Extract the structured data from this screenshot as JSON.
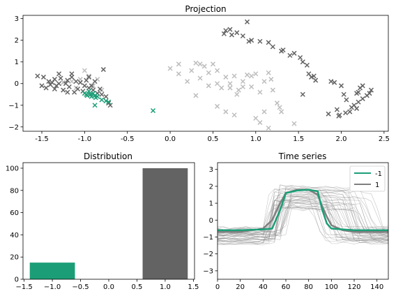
{
  "colors": {
    "highlight": "#1b9e77",
    "dark": "#636363",
    "light": "#bdbdbd",
    "series_bg": "#7f7f7f"
  },
  "chart_data": [
    {
      "type": "scatter",
      "title": "Projection",
      "marker": "x",
      "xlim": [
        -1.72,
        2.55
      ],
      "ylim": [
        -2.2,
        3.15
      ],
      "xticks": [
        -1.5,
        -1.0,
        -0.5,
        0.0,
        0.5,
        1.0,
        1.5,
        2.0,
        2.5
      ],
      "xtick_labels": [
        "-1.5",
        "-1.0",
        "-0.5",
        "0.0",
        "0.5",
        "1.0",
        "1.5",
        "2.0",
        "2.5"
      ],
      "yticks": [
        -2,
        -1,
        0,
        1,
        2,
        3
      ],
      "ytick_labels": [
        "−2",
        "−1",
        "0",
        "1",
        "2",
        "3"
      ],
      "series": [
        {
          "color_key": "light",
          "points": [
            [
              -1.25,
              0.05
            ],
            [
              -1.15,
              0.1
            ],
            [
              -1.05,
              0.2
            ],
            [
              -1.0,
              0.6
            ],
            [
              -0.95,
              0.35
            ],
            [
              -0.9,
              -0.1
            ],
            [
              -0.85,
              0.2
            ],
            [
              -0.8,
              -0.3
            ],
            [
              -0.95,
              -0.5
            ],
            [
              -1.1,
              -0.2
            ],
            [
              0.0,
              0.7
            ],
            [
              0.1,
              0.9
            ],
            [
              0.1,
              0.45
            ],
            [
              0.25,
              0.6
            ],
            [
              0.3,
              0.95
            ],
            [
              0.35,
              0.25
            ],
            [
              0.4,
              0.8
            ],
            [
              0.45,
              -0.1
            ],
            [
              0.5,
              0.9
            ],
            [
              0.45,
              0.5
            ],
            [
              0.55,
              0.6
            ],
            [
              0.55,
              0.0
            ],
            [
              0.6,
              -0.2
            ],
            [
              0.65,
              0.3
            ],
            [
              0.7,
              -0.2
            ],
            [
              0.75,
              0.35
            ],
            [
              0.78,
              -0.5
            ],
            [
              0.8,
              -0.3
            ],
            [
              0.85,
              0.1
            ],
            [
              0.9,
              0.4
            ],
            [
              0.95,
              -0.15
            ],
            [
              1.0,
              0.45
            ],
            [
              1.05,
              -0.4
            ],
            [
              1.1,
              0.1
            ],
            [
              1.15,
              0.5
            ],
            [
              1.2,
              -0.3
            ],
            [
              1.25,
              -0.9
            ],
            [
              1.1,
              -1.3
            ],
            [
              1.0,
              -1.6
            ],
            [
              1.05,
              -1.8
            ],
            [
              1.15,
              -2.05
            ],
            [
              1.3,
              -1.3
            ],
            [
              1.45,
              -1.85
            ],
            [
              0.55,
              -1.05
            ],
            [
              0.65,
              -1.3
            ],
            [
              0.75,
              -1.45
            ],
            [
              0.3,
              -0.55
            ],
            [
              0.2,
              0.1
            ],
            [
              0.85,
              -0.15
            ],
            [
              0.95,
              0.35
            ],
            [
              0.7,
              0.0
            ],
            [
              0.35,
              0.9
            ],
            [
              1.18,
              0.2
            ],
            [
              1.28,
              -1.1
            ]
          ]
        },
        {
          "color_key": "dark",
          "points": [
            [
              -1.55,
              0.35
            ],
            [
              -1.5,
              -0.1
            ],
            [
              -1.48,
              0.3
            ],
            [
              -1.45,
              -0.2
            ],
            [
              -1.4,
              -0.05
            ],
            [
              -1.38,
              0.05
            ],
            [
              -1.35,
              0.2
            ],
            [
              -1.33,
              -0.1
            ],
            [
              -1.3,
              0.45
            ],
            [
              -1.28,
              0.25
            ],
            [
              -1.25,
              -0.3
            ],
            [
              -1.22,
              0.0
            ],
            [
              -1.2,
              0.15
            ],
            [
              -1.18,
              -0.15
            ],
            [
              -1.15,
              0.3
            ],
            [
              -1.12,
              -0.4
            ],
            [
              -1.1,
              0.1
            ],
            [
              -1.08,
              -0.25
            ],
            [
              -1.05,
              0.05
            ],
            [
              -1.02,
              -0.35
            ],
            [
              -1.0,
              -0.1
            ],
            [
              -0.98,
              0.15
            ],
            [
              -0.95,
              -0.2
            ],
            [
              -0.92,
              -0.1
            ],
            [
              -0.9,
              -0.3
            ],
            [
              -0.88,
              0.1
            ],
            [
              -0.85,
              -0.45
            ],
            [
              -0.82,
              -0.25
            ],
            [
              -0.8,
              -0.5
            ],
            [
              -0.78,
              0.65
            ],
            [
              -0.75,
              -0.6
            ],
            [
              -0.72,
              -0.9
            ],
            [
              -0.7,
              -1.0
            ],
            [
              -0.95,
              0.3
            ],
            [
              -1.3,
              0.0
            ],
            [
              -1.42,
              0.1
            ],
            [
              -1.2,
              -0.4
            ],
            [
              -1.15,
              0.45
            ],
            [
              -1.35,
              -0.25
            ],
            [
              0.63,
              2.3
            ],
            [
              0.65,
              2.45
            ],
            [
              0.7,
              2.5
            ],
            [
              0.72,
              2.25
            ],
            [
              0.78,
              2.35
            ],
            [
              0.85,
              2.2
            ],
            [
              0.9,
              2.85
            ],
            [
              0.92,
              1.95
            ],
            [
              0.95,
              2.0
            ],
            [
              1.05,
              1.95
            ],
            [
              1.15,
              1.9
            ],
            [
              1.2,
              1.7
            ],
            [
              1.3,
              1.5
            ],
            [
              1.32,
              1.55
            ],
            [
              1.4,
              1.3
            ],
            [
              1.45,
              1.4
            ],
            [
              1.52,
              1.2
            ],
            [
              1.55,
              1.0
            ],
            [
              1.6,
              0.85
            ],
            [
              1.62,
              0.45
            ],
            [
              1.65,
              0.3
            ],
            [
              1.68,
              0.35
            ],
            [
              1.7,
              0.15
            ],
            [
              1.55,
              -0.5
            ],
            [
              1.85,
              -1.4
            ],
            [
              1.88,
              0.1
            ],
            [
              1.92,
              0.05
            ],
            [
              1.95,
              -1.2
            ],
            [
              1.97,
              -1.5
            ],
            [
              2.0,
              -0.1
            ],
            [
              2.03,
              -0.5
            ],
            [
              2.05,
              -1.35
            ],
            [
              2.1,
              -1.3
            ],
            [
              2.12,
              -1.1
            ],
            [
              2.15,
              -1.0
            ],
            [
              2.18,
              -0.45
            ],
            [
              2.2,
              -0.85
            ],
            [
              2.22,
              -0.2
            ],
            [
              2.25,
              -0.7
            ],
            [
              2.3,
              -0.55
            ],
            [
              2.33,
              -0.45
            ],
            [
              2.35,
              -0.3
            ],
            [
              2.2,
              -0.4
            ],
            [
              2.18,
              -1.15
            ],
            [
              2.06,
              -0.75
            ],
            [
              2.25,
              -0.1
            ],
            [
              1.98,
              -1.45
            ]
          ]
        },
        {
          "color_key": "highlight",
          "points": [
            [
              -1.0,
              -0.45
            ],
            [
              -0.97,
              -0.55
            ],
            [
              -0.95,
              -0.35
            ],
            [
              -0.93,
              -0.5
            ],
            [
              -0.92,
              -0.6
            ],
            [
              -0.9,
              -0.45
            ],
            [
              -0.88,
              -0.55
            ],
            [
              -0.87,
              -0.65
            ],
            [
              -0.85,
              -0.6
            ],
            [
              -0.8,
              -0.75
            ],
            [
              -0.75,
              -0.8
            ],
            [
              -0.72,
              -0.85
            ],
            [
              -0.88,
              -1.0
            ],
            [
              -0.2,
              -1.25
            ],
            [
              -0.98,
              -0.5
            ]
          ]
        }
      ]
    },
    {
      "type": "bar",
      "title": "Distribution",
      "categories": [
        -1,
        1
      ],
      "values": [
        15,
        100
      ],
      "bar_colors": [
        "highlight",
        "dark"
      ],
      "bar_width": 0.8,
      "xlim": [
        -1.52,
        1.52
      ],
      "ylim": [
        0,
        105
      ],
      "xticks": [
        -1.5,
        -1.0,
        -0.5,
        0.0,
        0.5,
        1.0,
        1.5
      ],
      "xtick_labels": [
        "−1.5",
        "−1.0",
        "−0.5",
        "0.0",
        "0.5",
        "1.0",
        "1.5"
      ],
      "yticks": [
        0,
        20,
        40,
        60,
        80,
        100
      ],
      "ytick_labels": [
        "0",
        "20",
        "40",
        "60",
        "80",
        "100"
      ]
    },
    {
      "type": "line",
      "title": "Time series",
      "xlim": [
        0,
        150
      ],
      "ylim": [
        -3.5,
        3.4
      ],
      "xticks": [
        0,
        20,
        40,
        60,
        80,
        100,
        120,
        140
      ],
      "xtick_labels": [
        "0",
        "20",
        "40",
        "60",
        "80",
        "100",
        "120",
        "140"
      ],
      "yticks": [
        -3,
        -2,
        -1,
        0,
        1,
        2,
        3
      ],
      "ytick_labels": [
        "−3",
        "−2",
        "−1",
        "0",
        "1",
        "2",
        "3"
      ],
      "legend": {
        "placement": "upper-right",
        "entries": [
          {
            "label": "-1",
            "color_key": "highlight"
          },
          {
            "label": "1",
            "color_key": "series_bg"
          }
        ]
      },
      "series": [
        {
          "name": "-1",
          "color_key": "highlight",
          "x": [
            0,
            20,
            40,
            48,
            55,
            60,
            70,
            80,
            88,
            92,
            96,
            100,
            110,
            120,
            130,
            140,
            150
          ],
          "y": [
            -0.6,
            -0.6,
            -0.55,
            -0.5,
            0.6,
            1.6,
            1.75,
            1.8,
            1.7,
            0.6,
            -0.2,
            -0.5,
            -0.55,
            -0.6,
            -0.6,
            -0.6,
            -0.6
          ]
        },
        {
          "name": "1",
          "color_key": "series_bg",
          "x": [
            0,
            20,
            30,
            40,
            48,
            55,
            60,
            70,
            80,
            88,
            92,
            96,
            100,
            110,
            120,
            130,
            140,
            150
          ],
          "y": [
            -0.7,
            -0.7,
            -0.6,
            -0.5,
            0.0,
            1.0,
            1.6,
            1.8,
            1.8,
            1.5,
            0.8,
            0.2,
            -0.3,
            -0.6,
            -0.7,
            -0.7,
            -0.7,
            -0.7
          ]
        }
      ]
    }
  ]
}
